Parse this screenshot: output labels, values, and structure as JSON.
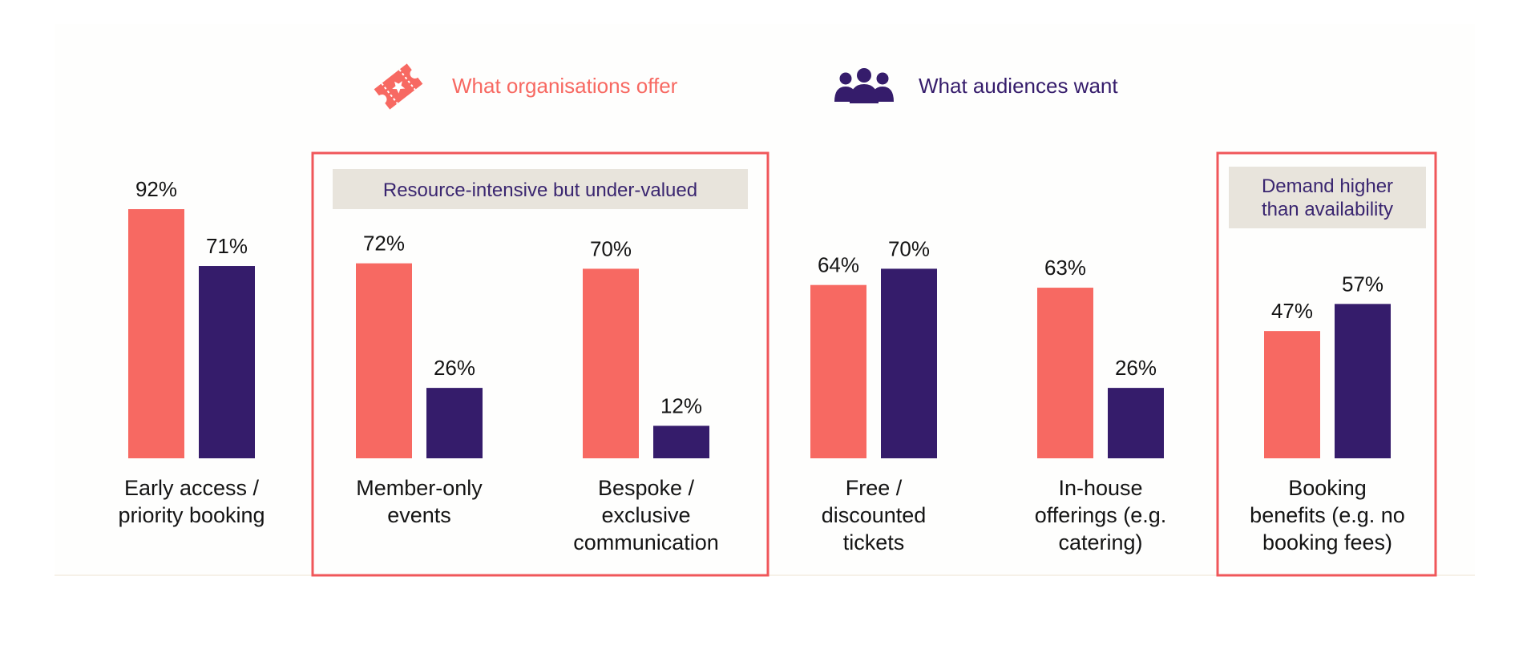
{
  "colors": {
    "offer": "#f76962",
    "want": "#351c6b",
    "box_border": "#f0575a",
    "callout_bg": "#e8e4dc",
    "callout_text": "#3a2670",
    "panel_bg": "#fefefd",
    "label_text": "#141414"
  },
  "legend": {
    "offer_icon": "ticket-icon",
    "want_icon": "people-group-icon"
  },
  "callouts": [
    {
      "lines": [
        "Resource-intensive but under-valued"
      ],
      "spans": [
        1,
        2
      ]
    },
    {
      "lines": [
        "Demand higher",
        "than availability"
      ],
      "spans": [
        5,
        5
      ]
    }
  ],
  "chart_data": {
    "type": "bar",
    "categories": [
      [
        "Early access /",
        "priority booking"
      ],
      [
        "Member-only",
        "events"
      ],
      [
        "Bespoke /",
        "exclusive",
        "communication"
      ],
      [
        "Free /",
        "discounted",
        "tickets"
      ],
      [
        "In-house",
        "offerings (e.g.",
        "catering)"
      ],
      [
        "Booking",
        "benefits (e.g. no",
        "booking fees)"
      ]
    ],
    "series": [
      {
        "name": "What organisations offer",
        "values": [
          92,
          72,
          70,
          64,
          63,
          47
        ]
      },
      {
        "name": "What audiences want",
        "values": [
          71,
          26,
          12,
          70,
          26,
          57
        ]
      }
    ],
    "value_suffix": "%",
    "ylim": [
      0,
      100
    ],
    "grid": false,
    "legend_position": "top-center"
  }
}
